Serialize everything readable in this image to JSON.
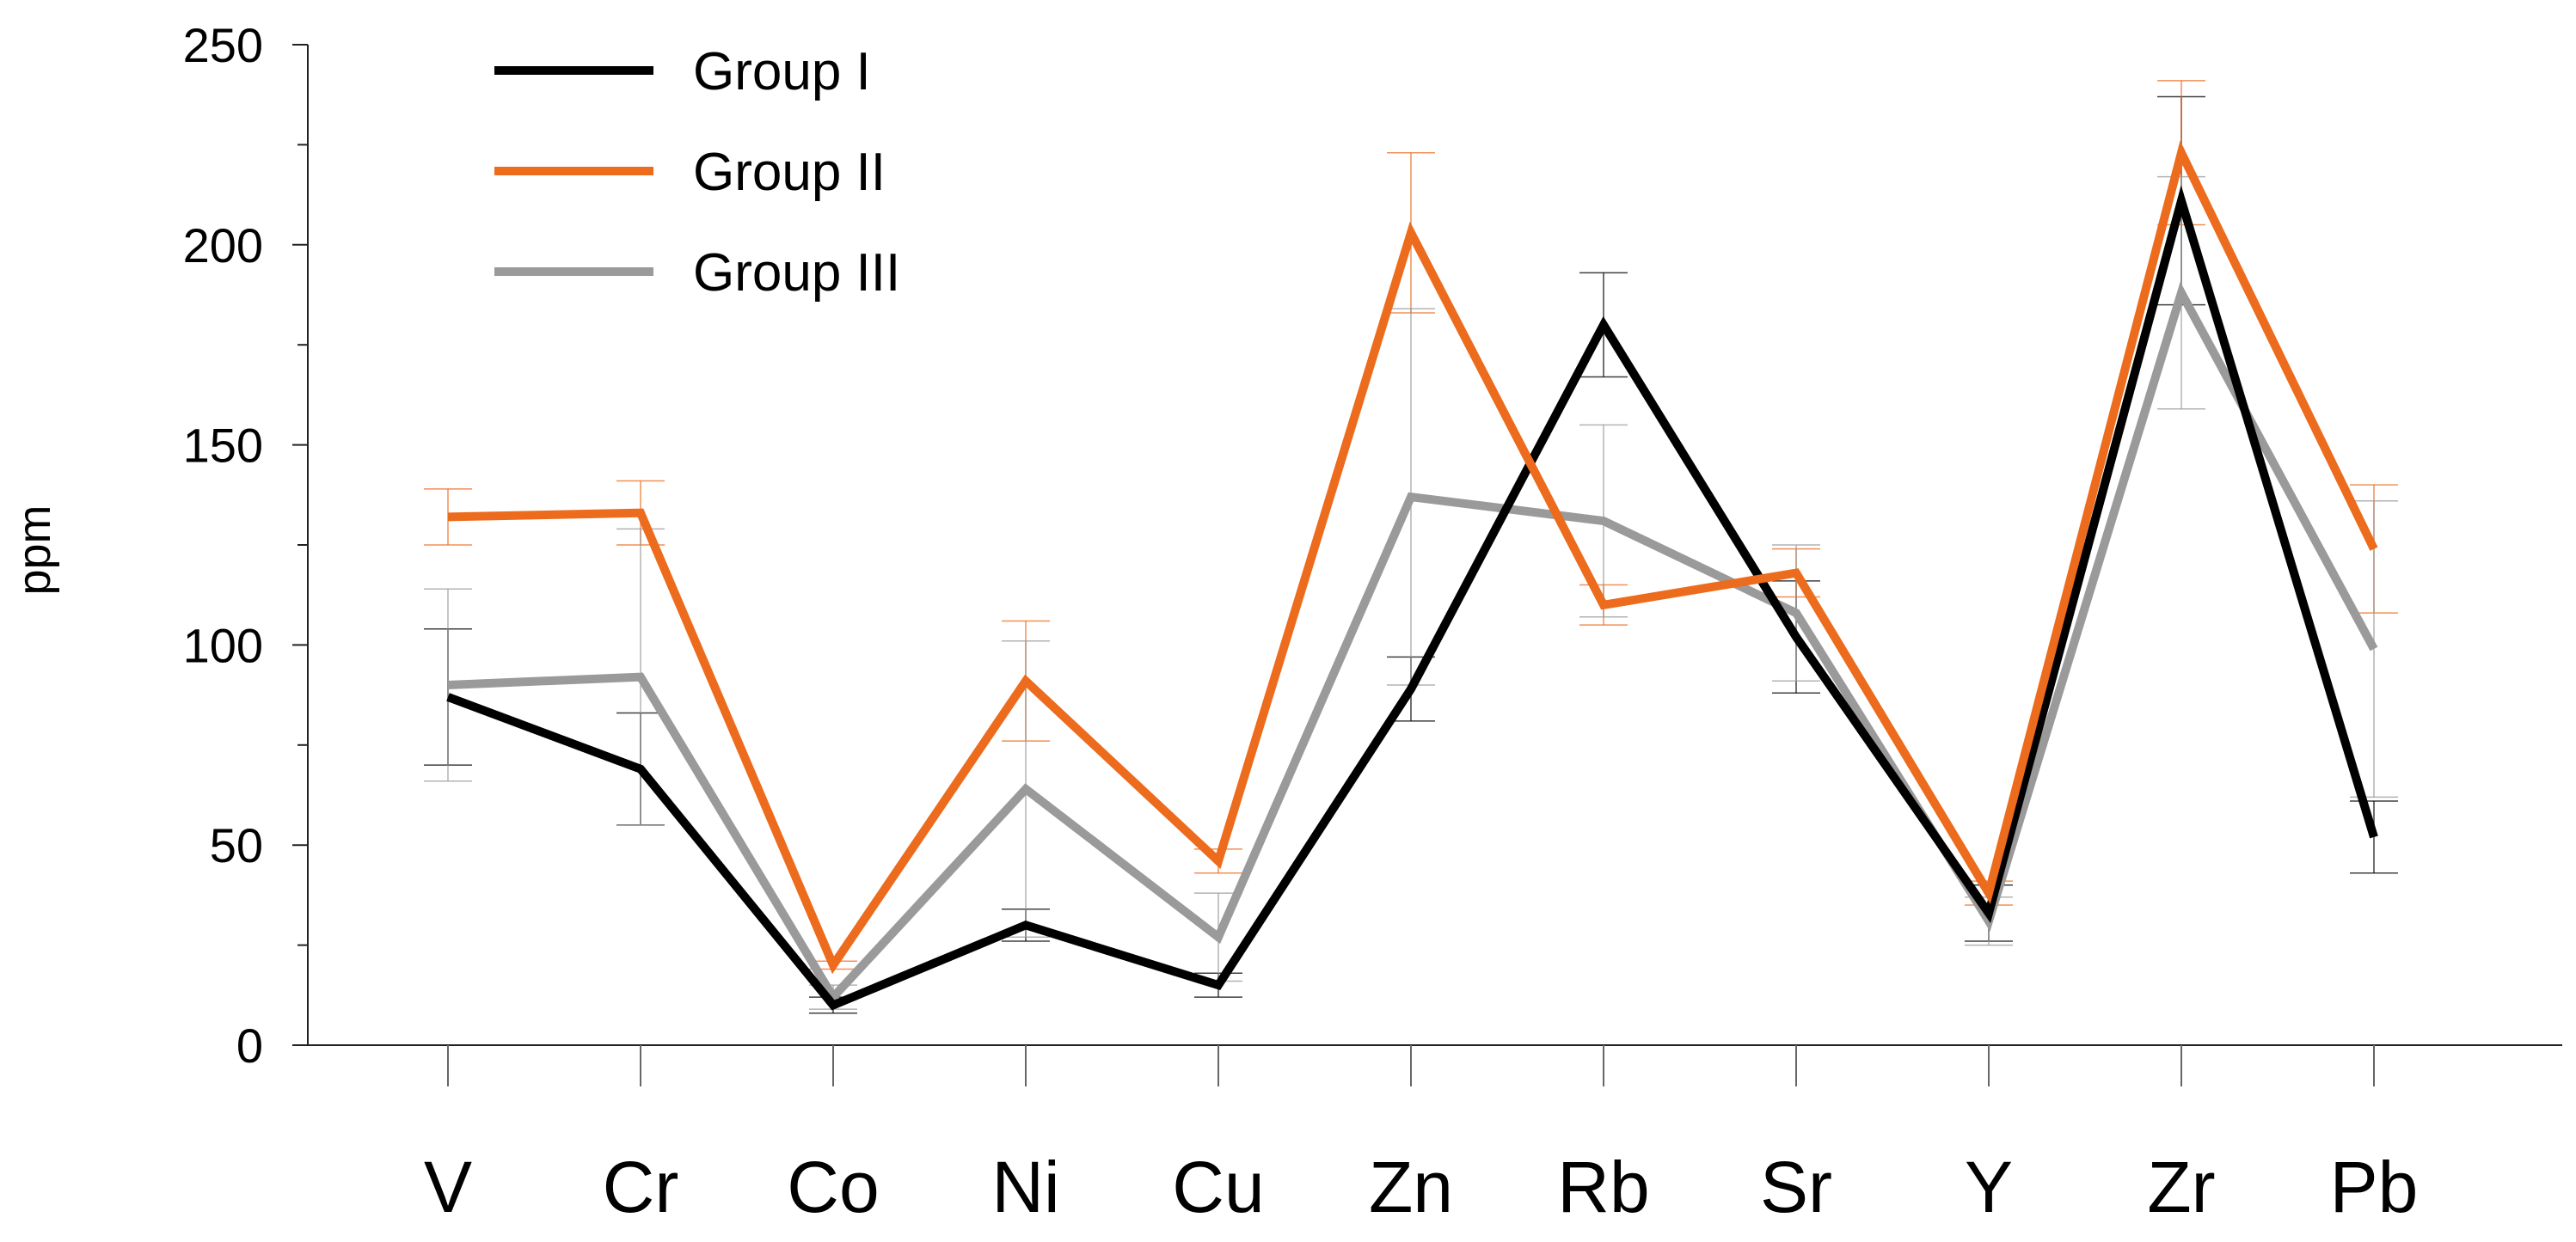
{
  "chart_data": {
    "type": "line",
    "title": "",
    "xlabel": "",
    "ylabel": "ppm",
    "categories": [
      "V",
      "Cr",
      "Co",
      "Ni",
      "Cu",
      "Zn",
      "Rb",
      "Sr",
      "Y",
      "Zr",
      "Pb"
    ],
    "ylim": [
      0,
      250
    ],
    "yticks": [
      0,
      50,
      100,
      150,
      200,
      250
    ],
    "grid": false,
    "legend_position": "top-left",
    "series": [
      {
        "name": "Group I",
        "color": "#000000",
        "values": [
          87,
          69,
          10,
          30,
          15,
          89,
          180,
          102,
          33,
          211,
          52
        ],
        "error": [
          17,
          14,
          2,
          4,
          3,
          8,
          13,
          14,
          7,
          26,
          9
        ]
      },
      {
        "name": "Group II",
        "color": "#EC6B1D",
        "values": [
          132,
          133,
          20,
          91,
          46,
          203,
          110,
          118,
          38,
          223,
          124
        ],
        "error": [
          7,
          8,
          1,
          15,
          3,
          20,
          5,
          6,
          3,
          18,
          16
        ]
      },
      {
        "name": "Group III",
        "color": "#9A9A9A",
        "values": [
          90,
          92,
          12,
          64,
          27,
          137,
          131,
          108,
          31,
          188,
          99
        ],
        "error": [
          24,
          37,
          3,
          37,
          11,
          47,
          24,
          17,
          6,
          29,
          37
        ]
      }
    ]
  }
}
